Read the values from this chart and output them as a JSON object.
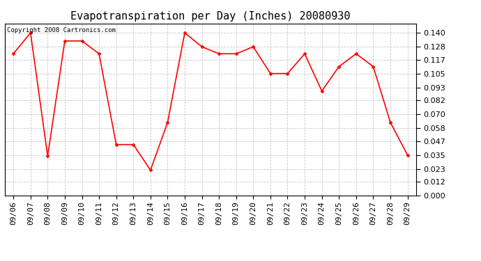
{
  "title": "Evapotranspiration per Day (Inches) 20080930",
  "copyright_text": "Copyright 2008 Cartronics.com",
  "x_labels": [
    "09/06",
    "09/07",
    "09/08",
    "09/09",
    "09/10",
    "09/11",
    "09/12",
    "09/13",
    "09/14",
    "09/15",
    "09/16",
    "09/17",
    "09/18",
    "09/19",
    "09/20",
    "09/21",
    "09/22",
    "09/23",
    "09/24",
    "09/25",
    "09/26",
    "09/27",
    "09/28",
    "09/29"
  ],
  "y_values": [
    0.122,
    0.14,
    0.034,
    0.133,
    0.133,
    0.122,
    0.044,
    0.044,
    0.022,
    0.063,
    0.14,
    0.128,
    0.122,
    0.122,
    0.128,
    0.105,
    0.105,
    0.122,
    0.09,
    0.111,
    0.122,
    0.111,
    0.063,
    0.035
  ],
  "line_color": "#ff0000",
  "marker": "D",
  "marker_size": 2.5,
  "line_width": 1.2,
  "ylim": [
    0.0,
    0.148
  ],
  "yticks": [
    0.0,
    0.012,
    0.023,
    0.035,
    0.047,
    0.058,
    0.07,
    0.082,
    0.093,
    0.105,
    0.117,
    0.128,
    0.14
  ],
  "background_color": "#ffffff",
  "grid_color": "#c8c8c8",
  "title_fontsize": 11,
  "tick_fontsize": 8,
  "copyright_fontsize": 6.5
}
